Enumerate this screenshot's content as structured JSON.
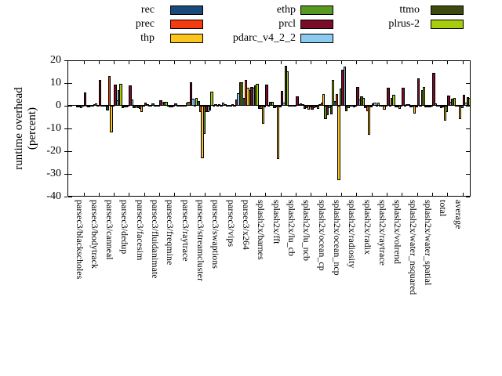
{
  "chart_data": {
    "type": "bar",
    "title": "",
    "ylabel_lines": [
      "runtime overhead",
      "(percent)"
    ],
    "ylim": [
      -40,
      20
    ],
    "yticks": [
      20,
      10,
      0,
      -10,
      -20,
      -30,
      -40
    ],
    "grid": false,
    "legend_position": "top-center-three-columns",
    "legend_columns": [
      [
        "rec",
        "prec",
        "thp"
      ],
      [
        "ethp",
        "prcl",
        "pdarc_v4_2_2"
      ],
      [
        "ttmo",
        "plrus-2"
      ]
    ],
    "categories": [
      "parsec3/blackscholes",
      "parsec3/bodytrack",
      "parsec3/canneal",
      "parsec3/dedup",
      "parsec3/facesim",
      "parsec3/fluidanimate",
      "parsec3/freqmine",
      "parsec3/raytrace",
      "parsec3/streamcluster",
      "parsec3/swaptions",
      "parsec3/vips",
      "parsec3/x264",
      "splash2x/barnes",
      "splash2x/fft",
      "splash2x/lu_cb",
      "splash2x/lu_ncb",
      "splash2x/ocean_cp",
      "splash2x/ocean_ncp",
      "splash2x/radiosity",
      "splash2x/radix",
      "splash2x/raytrace",
      "splash2x/volrend",
      "splash2x/water_nsquared",
      "splash2x/water_spatial",
      "total",
      "average"
    ],
    "series": [
      {
        "name": "rec",
        "color": "#1a4a7a",
        "values": [
          -0.3,
          0.2,
          -2.0,
          -1.2,
          -1.0,
          1.0,
          0.2,
          0.3,
          2.2,
          0.3,
          0.3,
          3.3,
          -1.3,
          -1.2,
          0.4,
          -1.5,
          0.8,
          2.0,
          0.3,
          -1.0,
          0.5,
          -0.3,
          -0.3,
          -0.8,
          -1.0,
          0.5
        ]
      },
      {
        "name": "prec",
        "color": "#f43b10",
        "values": [
          -0.3,
          0.7,
          13.0,
          -0.5,
          -1.5,
          0.2,
          -0.2,
          0.4,
          -2.7,
          0.6,
          0.5,
          11.3,
          -1.5,
          -0.8,
          0.4,
          -1.0,
          1.5,
          5.0,
          0.4,
          -2.5,
          0.5,
          -0.3,
          0.3,
          -0.5,
          -0.5,
          0.3
        ]
      },
      {
        "name": "thp",
        "color": "#fcc41f",
        "values": [
          -1.2,
          0.9,
          -11.8,
          -0.7,
          -2.8,
          0.2,
          -0.8,
          1.5,
          -23.0,
          0.3,
          0.7,
          7.8,
          -8.1,
          -23.6,
          0.3,
          -1.8,
          5.2,
          -32.9,
          -0.5,
          -12.8,
          -1.8,
          -1.3,
          -3.5,
          -0.8,
          -6.5,
          -6.0
        ]
      },
      {
        "name": "ethp",
        "color": "#58991f",
        "values": [
          0.2,
          0.3,
          0.3,
          0.3,
          0.3,
          0.3,
          0.2,
          1.8,
          -12.5,
          0.7,
          0.5,
          7.0,
          -0.5,
          -0.5,
          0.5,
          -0.5,
          -5.9,
          7.5,
          0.5,
          -0.5,
          0.3,
          0.2,
          -0.5,
          0.2,
          -2.8,
          -1.0
        ]
      },
      {
        "name": "prcl",
        "color": "#7b0c28",
        "values": [
          5.7,
          11.3,
          9.2,
          8.9,
          1.4,
          2.4,
          1.0,
          10.4,
          -2.7,
          0.4,
          2.8,
          8.4,
          9.2,
          6.6,
          4.0,
          -1.8,
          -4.3,
          15.9,
          8.3,
          1.0,
          8.0,
          8.0,
          12.2,
          14.6,
          4.5,
          4.7
        ]
      },
      {
        "name": "pdarc_v4_2_2",
        "color": "#8ccbf0",
        "values": [
          0.3,
          0.5,
          2.3,
          2.9,
          0.8,
          1.4,
          0.3,
          3.0,
          -2.7,
          1.5,
          5.5,
          8.1,
          0.5,
          1.3,
          0.8,
          -1.0,
          -1.0,
          17.1,
          2.8,
          1.5,
          0.5,
          0.3,
          0.5,
          1.0,
          1.7,
          1.5
        ]
      },
      {
        "name": "ttmo",
        "color": "#3d4a0e",
        "values": [
          -0.3,
          0.5,
          7.0,
          -1.0,
          0.4,
          1.8,
          0.2,
          0.5,
          -2.0,
          0.7,
          10.3,
          9.0,
          1.8,
          17.6,
          1.2,
          -0.5,
          -3.8,
          -2.5,
          4.3,
          0.5,
          3.5,
          0.8,
          7.0,
          0.3,
          3.0,
          3.8
        ]
      },
      {
        "name": "plrus-2",
        "color": "#a5cd0e",
        "values": [
          0.2,
          0.3,
          9.5,
          0.3,
          0.5,
          1.7,
          0.3,
          3.5,
          6.3,
          0.3,
          10.5,
          9.6,
          1.8,
          15.2,
          0.8,
          -1.5,
          11.5,
          -1.0,
          3.5,
          1.5,
          4.7,
          0.8,
          8.2,
          0.3,
          3.5,
          3.3
        ]
      }
    ]
  }
}
